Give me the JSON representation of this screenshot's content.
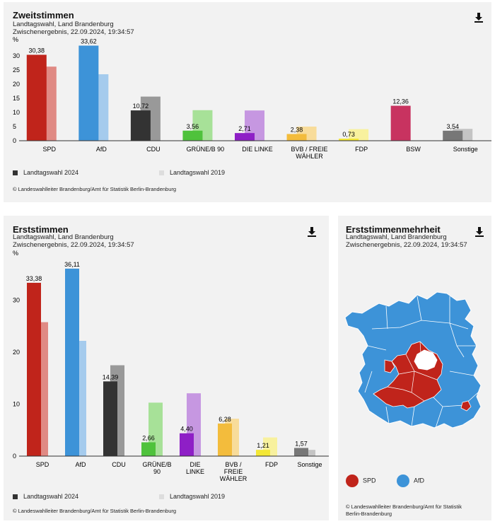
{
  "zweit": {
    "title": "Zweitstimmen",
    "line1": "Landtagswahl, Land Brandenburg",
    "line2": "Zwischenergebnis, 22.09.2024, 19:34:57",
    "legend_2024": "Landtagswahl 2024",
    "legend_2019": "Landtagswahl 2019",
    "source": "© Landeswahlleiter Brandenburg/Amt für Statistik Berlin-Brandenburg",
    "download_icon": "download-icon"
  },
  "erst": {
    "title": "Erststimmen",
    "line1": "Landtagswahl, Land Brandenburg",
    "line2": "Zwischenergebnis, 22.09.2024, 19:34:57",
    "legend_2024": "Landtagswahl 2024",
    "legend_2019": "Landtagswahl 2019",
    "source": "© Landeswahlleiter Brandenburg/Amt für Statistik Berlin-Brandenburg",
    "download_icon": "download-icon"
  },
  "mehrheit": {
    "title": "Erststimmenmehrheit",
    "line1": "Landtagswahl, Land Brandenburg",
    "line2": "Zwischenergebnis, 22.09.2024, 19:34:57",
    "legend_spd": "SPD",
    "legend_afd": "AfD",
    "source_line1": "© Landeswahlleiter Brandenburg/Amt für Statistik",
    "source_line2": "Berlin-Brandenburg",
    "colors": {
      "spd": "#c0241b",
      "afd": "#3d93d8"
    },
    "download_icon": "download-icon"
  },
  "chart_data": [
    {
      "type": "bar",
      "title": "Zweitstimmen",
      "ylabel": "%",
      "ylim": [
        0,
        35
      ],
      "yticks": [
        0,
        5,
        10,
        15,
        20,
        25,
        30
      ],
      "categories": [
        "SPD",
        "AfD",
        "CDU",
        "GRÜNE/B 90",
        "DIE LINKE",
        "BVB / FREIE WÄHLER",
        "FDP",
        "BSW",
        "Sonstige"
      ],
      "category_lines": [
        [
          "SPD"
        ],
        [
          "AfD"
        ],
        [
          "CDU"
        ],
        [
          "GRÜNE/B 90"
        ],
        [
          "DIE LINKE"
        ],
        [
          "BVB / FREIE",
          "WÄHLER"
        ],
        [
          "FDP"
        ],
        [
          "BSW"
        ],
        [
          "Sonstige"
        ]
      ],
      "series": [
        {
          "name": "Landtagswahl 2024",
          "values": [
            30.38,
            33.62,
            10.72,
            3.56,
            2.71,
            2.38,
            0.73,
            12.36,
            3.54
          ],
          "labels": [
            "30,38",
            "33,62",
            "10,72",
            "3,56",
            "2,71",
            "2,38",
            "0,73",
            "12,36",
            "3,54"
          ]
        },
        {
          "name": "Landtagswahl 2019",
          "values": [
            26.2,
            23.5,
            15.6,
            10.8,
            10.7,
            5.0,
            4.1,
            null,
            4.2
          ]
        }
      ],
      "colors_2024": [
        "#c0241b",
        "#3d93d8",
        "#333333",
        "#4fc23c",
        "#8e1fc6",
        "#f3bc3c",
        "#f3e735",
        "#c83360",
        "#777777"
      ],
      "colors_2019": [
        "#e08a84",
        "#a5cbed",
        "#999999",
        "#a7e198",
        "#c697e1",
        "#f8dc9a",
        "#f8f19e",
        "#e0a0b4",
        "#c4c4c4"
      ]
    },
    {
      "type": "bar",
      "title": "Erststimmen",
      "ylabel": "%",
      "ylim": [
        0,
        38
      ],
      "yticks": [
        0,
        10,
        20,
        30
      ],
      "categories": [
        "SPD",
        "AfD",
        "CDU",
        "GRÜNE/B 90",
        "DIE LINKE",
        "BVB / FREIE WÄHLER",
        "FDP",
        "Sonstige"
      ],
      "category_lines": [
        [
          "SPD"
        ],
        [
          "AfD"
        ],
        [
          "CDU"
        ],
        [
          "GRÜNE/B",
          "90"
        ],
        [
          "DIE",
          "LINKE"
        ],
        [
          "BVB /",
          "FREIE",
          "WÄHLER"
        ],
        [
          "FDP"
        ],
        [
          "Sonstige"
        ]
      ],
      "series": [
        {
          "name": "Landtagswahl 2024",
          "values": [
            33.38,
            36.11,
            14.39,
            2.66,
            4.4,
            6.28,
            1.21,
            1.57
          ],
          "labels": [
            "33,38",
            "36,11",
            "14,39",
            "2,66",
            "4,40",
            "6,28",
            "1,21",
            "1,57"
          ]
        },
        {
          "name": "Landtagswahl 2019",
          "values": [
            25.8,
            22.2,
            17.5,
            10.3,
            12.1,
            7.2,
            3.6,
            1.2
          ]
        }
      ],
      "colors_2024": [
        "#c0241b",
        "#3d93d8",
        "#333333",
        "#4fc23c",
        "#8e1fc6",
        "#f3bc3c",
        "#f3e735",
        "#777777"
      ],
      "colors_2019": [
        "#e08a84",
        "#a5cbed",
        "#999999",
        "#a7e198",
        "#c697e1",
        "#f8dc9a",
        "#f8f19e",
        "#c4c4c4"
      ]
    }
  ]
}
